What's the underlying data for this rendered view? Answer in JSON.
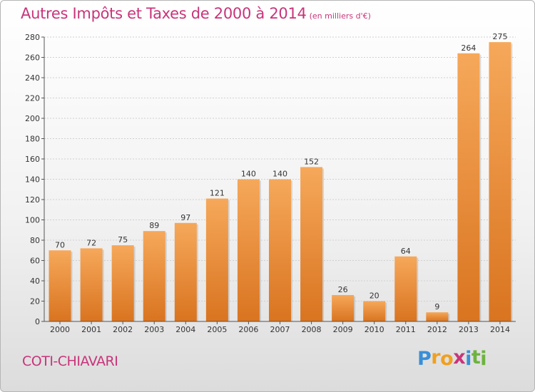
{
  "header": {
    "title": "Autres Impôts et Taxes de 2000 à 2014",
    "unit": "(en milliers d'€)"
  },
  "footer": {
    "city": "COTI-CHIAVARI",
    "brand_letters": [
      "P",
      "r",
      "o",
      "x",
      "i",
      "t",
      "i"
    ],
    "brand_colors": [
      "#3a8fd6",
      "#f0a020",
      "#f0a020",
      "#c8347a",
      "#3a8fd6",
      "#6db33f",
      "#6db33f"
    ]
  },
  "colors": {
    "bar_light": "#f6a85a",
    "bar_dark": "#d97420",
    "grid": "#d0d0d0",
    "axis": "#555555",
    "title": "#c8347a"
  },
  "chart_data": {
    "type": "bar",
    "title": "Autres Impôts et Taxes de 2000 à 2014",
    "subtitle": "(en milliers d'€)",
    "xlabel": "",
    "ylabel": "",
    "categories": [
      "2000",
      "2001",
      "2002",
      "2003",
      "2004",
      "2005",
      "2006",
      "2007",
      "2008",
      "2009",
      "2010",
      "2011",
      "2012",
      "2013",
      "2014"
    ],
    "values": [
      70,
      72,
      75,
      89,
      97,
      121,
      140,
      140,
      152,
      26,
      20,
      64,
      9,
      264,
      275
    ],
    "ylim": [
      0,
      280
    ],
    "yticks": [
      0,
      20,
      40,
      60,
      80,
      100,
      120,
      140,
      160,
      180,
      200,
      220,
      240,
      260,
      280
    ],
    "grid": true,
    "legend": "none"
  }
}
